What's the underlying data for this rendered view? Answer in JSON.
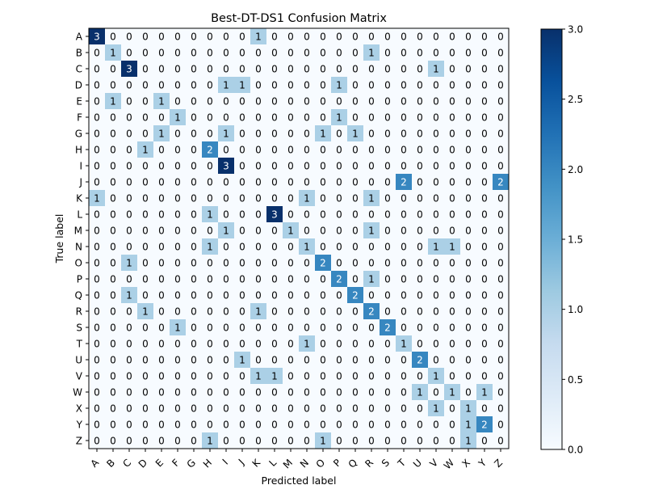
{
  "chart_data": {
    "type": "heatmap",
    "title": "Best-DT-DS1 Confusion Matrix",
    "xlabel": "Predicted label",
    "ylabel": "True label",
    "x_categories": [
      "A",
      "B",
      "C",
      "D",
      "E",
      "F",
      "G",
      "H",
      "I",
      "J",
      "K",
      "L",
      "M",
      "N",
      "O",
      "P",
      "Q",
      "R",
      "S",
      "T",
      "U",
      "V",
      "W",
      "X",
      "Y",
      "Z"
    ],
    "y_categories": [
      "A",
      "B",
      "C",
      "D",
      "E",
      "F",
      "G",
      "H",
      "I",
      "J",
      "K",
      "L",
      "M",
      "N",
      "O",
      "P",
      "Q",
      "R",
      "S",
      "T",
      "U",
      "V",
      "W",
      "X",
      "Y",
      "Z"
    ],
    "values": [
      [
        3,
        0,
        0,
        0,
        0,
        0,
        0,
        0,
        0,
        0,
        1,
        0,
        0,
        0,
        0,
        0,
        0,
        0,
        0,
        0,
        0,
        0,
        0,
        0,
        0,
        0
      ],
      [
        0,
        1,
        0,
        0,
        0,
        0,
        0,
        0,
        0,
        0,
        0,
        0,
        0,
        0,
        0,
        0,
        0,
        1,
        0,
        0,
        0,
        0,
        0,
        0,
        0,
        0
      ],
      [
        0,
        0,
        3,
        0,
        0,
        0,
        0,
        0,
        0,
        0,
        0,
        0,
        0,
        0,
        0,
        0,
        0,
        0,
        0,
        0,
        0,
        1,
        0,
        0,
        0,
        0
      ],
      [
        0,
        0,
        0,
        0,
        0,
        0,
        0,
        0,
        1,
        1,
        0,
        0,
        0,
        0,
        0,
        1,
        0,
        0,
        0,
        0,
        0,
        0,
        0,
        0,
        0,
        0
      ],
      [
        0,
        1,
        0,
        0,
        1,
        0,
        0,
        0,
        0,
        0,
        0,
        0,
        0,
        0,
        0,
        0,
        0,
        0,
        0,
        0,
        0,
        0,
        0,
        0,
        0,
        0
      ],
      [
        0,
        0,
        0,
        0,
        0,
        1,
        0,
        0,
        0,
        0,
        0,
        0,
        0,
        0,
        0,
        1,
        0,
        0,
        0,
        0,
        0,
        0,
        0,
        0,
        0,
        0
      ],
      [
        0,
        0,
        0,
        0,
        1,
        0,
        0,
        0,
        1,
        0,
        0,
        0,
        0,
        0,
        1,
        0,
        1,
        0,
        0,
        0,
        0,
        0,
        0,
        0,
        0,
        0
      ],
      [
        0,
        0,
        0,
        1,
        0,
        0,
        0,
        2,
        0,
        0,
        0,
        0,
        0,
        0,
        0,
        0,
        0,
        0,
        0,
        0,
        0,
        0,
        0,
        0,
        0,
        0
      ],
      [
        0,
        0,
        0,
        0,
        0,
        0,
        0,
        0,
        3,
        0,
        0,
        0,
        0,
        0,
        0,
        0,
        0,
        0,
        0,
        0,
        0,
        0,
        0,
        0,
        0,
        0
      ],
      [
        0,
        0,
        0,
        0,
        0,
        0,
        0,
        0,
        0,
        0,
        0,
        0,
        0,
        0,
        0,
        0,
        0,
        0,
        0,
        2,
        0,
        0,
        0,
        0,
        0,
        2
      ],
      [
        1,
        0,
        0,
        0,
        0,
        0,
        0,
        0,
        0,
        0,
        0,
        0,
        0,
        1,
        0,
        0,
        0,
        1,
        0,
        0,
        0,
        0,
        0,
        0,
        0,
        0
      ],
      [
        0,
        0,
        0,
        0,
        0,
        0,
        0,
        1,
        0,
        0,
        0,
        3,
        0,
        0,
        0,
        0,
        0,
        0,
        0,
        0,
        0,
        0,
        0,
        0,
        0,
        0
      ],
      [
        0,
        0,
        0,
        0,
        0,
        0,
        0,
        0,
        1,
        0,
        0,
        0,
        1,
        0,
        0,
        0,
        0,
        1,
        0,
        0,
        0,
        0,
        0,
        0,
        0,
        0
      ],
      [
        0,
        0,
        0,
        0,
        0,
        0,
        0,
        1,
        0,
        0,
        0,
        0,
        0,
        1,
        0,
        0,
        0,
        0,
        0,
        0,
        0,
        1,
        1,
        0,
        0,
        0
      ],
      [
        0,
        0,
        1,
        0,
        0,
        0,
        0,
        0,
        0,
        0,
        0,
        0,
        0,
        0,
        2,
        0,
        0,
        0,
        0,
        0,
        0,
        0,
        0,
        0,
        0,
        0
      ],
      [
        0,
        0,
        0,
        0,
        0,
        0,
        0,
        0,
        0,
        0,
        0,
        0,
        0,
        0,
        0,
        2,
        0,
        1,
        0,
        0,
        0,
        0,
        0,
        0,
        0,
        0
      ],
      [
        0,
        0,
        1,
        0,
        0,
        0,
        0,
        0,
        0,
        0,
        0,
        0,
        0,
        0,
        0,
        0,
        2,
        0,
        0,
        0,
        0,
        0,
        0,
        0,
        0,
        0
      ],
      [
        0,
        0,
        0,
        1,
        0,
        0,
        0,
        0,
        0,
        0,
        1,
        0,
        0,
        0,
        0,
        0,
        0,
        2,
        0,
        0,
        0,
        0,
        0,
        0,
        0,
        0
      ],
      [
        0,
        0,
        0,
        0,
        0,
        1,
        0,
        0,
        0,
        0,
        0,
        0,
        0,
        0,
        0,
        0,
        0,
        0,
        2,
        0,
        0,
        0,
        0,
        0,
        0,
        0
      ],
      [
        0,
        0,
        0,
        0,
        0,
        0,
        0,
        0,
        0,
        0,
        0,
        0,
        0,
        1,
        0,
        0,
        0,
        0,
        0,
        1,
        0,
        0,
        0,
        0,
        0,
        0
      ],
      [
        0,
        0,
        0,
        0,
        0,
        0,
        0,
        0,
        0,
        1,
        0,
        0,
        0,
        0,
        0,
        0,
        0,
        0,
        0,
        0,
        2,
        0,
        0,
        0,
        0,
        0
      ],
      [
        0,
        0,
        0,
        0,
        0,
        0,
        0,
        0,
        0,
        0,
        1,
        1,
        0,
        0,
        0,
        0,
        0,
        0,
        0,
        0,
        0,
        1,
        0,
        0,
        0,
        0
      ],
      [
        0,
        0,
        0,
        0,
        0,
        0,
        0,
        0,
        0,
        0,
        0,
        0,
        0,
        0,
        0,
        0,
        0,
        0,
        0,
        0,
        1,
        0,
        1,
        0,
        1,
        0
      ],
      [
        0,
        0,
        0,
        0,
        0,
        0,
        0,
        0,
        0,
        0,
        0,
        0,
        0,
        0,
        0,
        0,
        0,
        0,
        0,
        0,
        0,
        1,
        0,
        1,
        0,
        0
      ],
      [
        0,
        0,
        0,
        0,
        0,
        0,
        0,
        0,
        0,
        0,
        0,
        0,
        0,
        0,
        0,
        0,
        0,
        0,
        0,
        0,
        0,
        0,
        0,
        1,
        2,
        0
      ],
      [
        0,
        0,
        0,
        0,
        0,
        0,
        0,
        1,
        0,
        0,
        0,
        0,
        0,
        0,
        1,
        0,
        0,
        0,
        0,
        0,
        0,
        0,
        0,
        1,
        0,
        0
      ]
    ],
    "colorbar": {
      "range": [
        0.0,
        3.0
      ],
      "ticks": [
        "0.0",
        "0.5",
        "1.0",
        "1.5",
        "2.0",
        "2.5",
        "3.0"
      ],
      "colormap": "Blues"
    },
    "grid": false,
    "legend": "colorbar-right"
  }
}
